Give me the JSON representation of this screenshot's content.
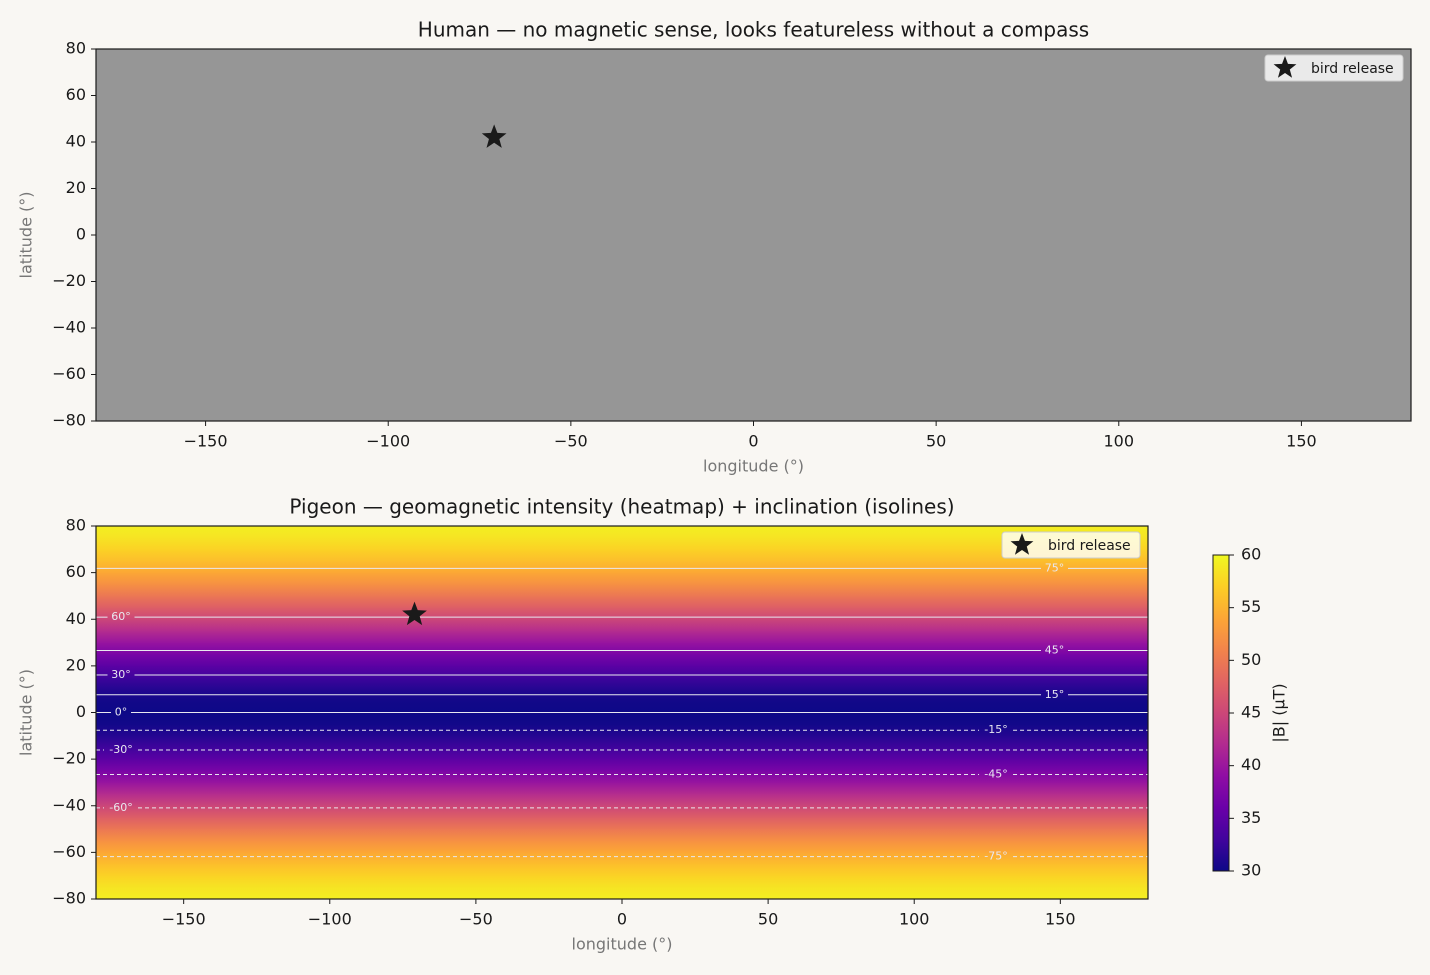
{
  "chart_data": [
    {
      "type": "scatter",
      "title": "Human — no magnetic sense, looks featureless without a compass",
      "xlabel": "longitude (°)",
      "ylabel": "latitude (°)",
      "background": "#969696",
      "xlim": [
        -180,
        180
      ],
      "xticks": [
        {
          "value": -150,
          "label": "−150"
        },
        {
          "value": -100,
          "label": "−100"
        },
        {
          "value": -50,
          "label": "−50"
        },
        0,
        50,
        100,
        150
      ],
      "ylim": [
        -80,
        80
      ],
      "yticks": [
        {
          "value": -80,
          "label": "−80"
        },
        {
          "value": -60,
          "label": "−60"
        },
        {
          "value": -40,
          "label": "−40"
        },
        {
          "value": -20,
          "label": "−20"
        },
        0,
        20,
        40,
        60,
        80
      ],
      "series": [
        {
          "name": "bird release",
          "color": "#1a1a1a",
          "x": [
            -71
          ],
          "values": [
            42
          ]
        }
      ],
      "legend": "upper right"
    },
    {
      "type": "heatmap",
      "title": "Pigeon — geomagnetic intensity (heatmap) + inclination (isolines)",
      "xlabel": "longitude (°)",
      "ylabel": "latitude (°)",
      "xlim": [
        -180,
        180
      ],
      "xticks": [
        {
          "value": -150,
          "label": "−150"
        },
        {
          "value": -100,
          "label": "−100"
        },
        {
          "value": -50,
          "label": "−50"
        },
        0,
        50,
        100,
        150
      ],
      "ylim": [
        -80,
        80
      ],
      "yticks": [
        {
          "value": -80,
          "label": "−80"
        },
        {
          "value": -60,
          "label": "−60"
        },
        {
          "value": -40,
          "label": "−40"
        },
        {
          "value": -20,
          "label": "−20"
        },
        0,
        20,
        40,
        60,
        80
      ],
      "y": [
        -80,
        -75,
        -70,
        -65,
        -60,
        -55,
        -50,
        -45,
        -40,
        -35,
        -30,
        -25,
        -20,
        -15,
        -10,
        -5,
        0,
        5,
        10,
        15,
        20,
        25,
        30,
        35,
        40,
        45,
        50,
        55,
        60,
        65,
        70,
        75,
        80
      ],
      "values": [
        59.3,
        58.5,
        57.3,
        55.8,
        54.1,
        52.1,
        49.8,
        47.4,
        44.9,
        42.3,
        39.7,
        37.2,
        34.9,
        32.9,
        31.3,
        30.3,
        30,
        30.3,
        31.3,
        32.9,
        34.9,
        37.2,
        39.7,
        42.3,
        44.9,
        47.4,
        49.8,
        52.1,
        54.1,
        55.8,
        57.3,
        58.5,
        59.3
      ],
      "colormap": "plasma",
      "clim": [
        30,
        60
      ],
      "cticks": [
        30,
        35,
        40,
        45,
        50,
        55,
        60
      ],
      "clabel": "|B| (μT)",
      "isolines": {
        "levels": [
          -75,
          -60,
          -45,
          -30,
          -15,
          0,
          15,
          30,
          45,
          60,
          75
        ],
        "labels": [
          "-75°",
          "-60°",
          "-45°",
          "-30°",
          "-15°",
          "0°",
          "15°",
          "30°",
          "45°",
          "60°",
          "75°"
        ],
        "y": [
          -61.8,
          -40.9,
          -26.6,
          -16.1,
          -7.6,
          0,
          7.6,
          16.1,
          26.6,
          40.9,
          61.8
        ],
        "color": "#e8e8f0"
      },
      "series": [
        {
          "name": "bird release",
          "color": "#1a1a1a",
          "x": [
            -71
          ],
          "values": [
            42
          ]
        }
      ],
      "legend": "upper right"
    }
  ]
}
